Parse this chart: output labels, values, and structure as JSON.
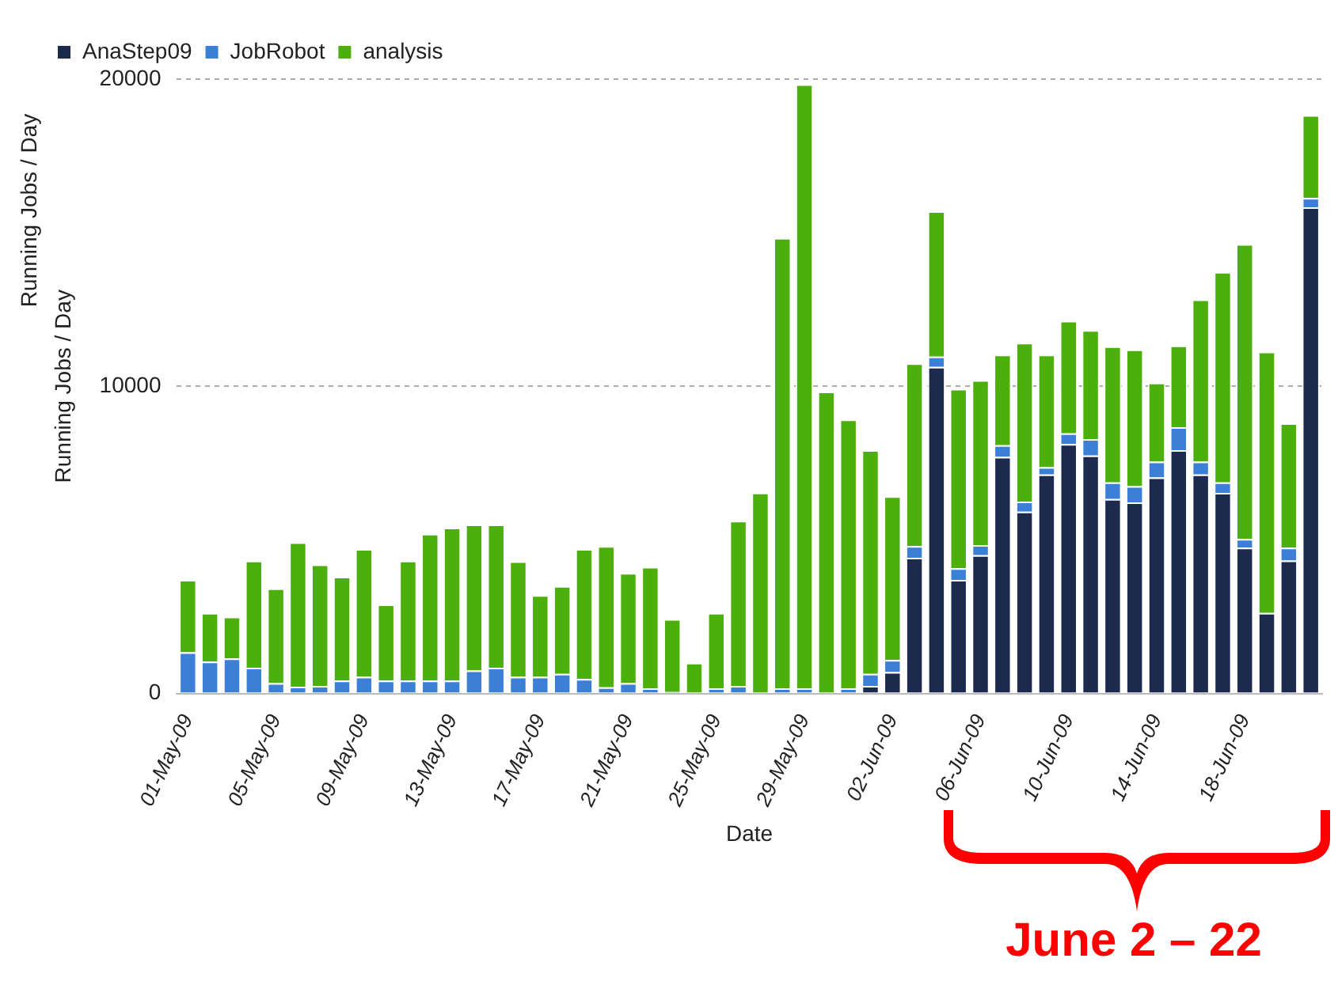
{
  "chart_data": {
    "type": "bar",
    "stacked": true,
    "xlabel": "Date",
    "ylabel": "Running Jobs / Day",
    "annotations": [
      "Running Jobs / Day",
      "June 2 – 22"
    ],
    "categories": [
      "01-May-09",
      null,
      null,
      null,
      "05-May-09",
      null,
      null,
      null,
      "09-May-09",
      null,
      null,
      null,
      "13-May-09",
      null,
      null,
      null,
      "17-May-09",
      null,
      null,
      null,
      "21-May-09",
      null,
      null,
      null,
      "25-May-09",
      null,
      null,
      null,
      "29-May-09",
      null,
      null,
      null,
      "02-Jun-09",
      null,
      null,
      null,
      "06-Jun-09",
      null,
      null,
      null,
      "10-Jun-09",
      null,
      null,
      null,
      "14-Jun-09",
      null,
      null,
      null,
      "18-Jun-09",
      null,
      null,
      null
    ],
    "series": [
      {
        "name": "AnaStep09",
        "color": "#1c2b4d",
        "values": [
          0,
          0,
          0,
          0,
          0,
          0,
          0,
          0,
          0,
          0,
          0,
          0,
          0,
          0,
          0,
          0,
          0,
          0,
          0,
          0,
          0,
          0,
          0,
          0,
          0,
          0,
          0,
          0,
          0,
          0,
          0,
          250,
          700,
          4420,
          10630,
          3700,
          4500,
          7700,
          5920,
          7130,
          8120,
          7750,
          6330,
          6220,
          7030,
          7920,
          7130,
          6530,
          4750,
          2620,
          4330,
          15830
        ]
      },
      {
        "name": "JobRobot",
        "color": "#3b80d6",
        "values": [
          1340,
          1040,
          1140,
          840,
          340,
          220,
          250,
          420,
          540,
          420,
          420,
          420,
          420,
          750,
          840,
          540,
          540,
          640,
          470,
          200,
          340,
          170,
          50,
          0,
          170,
          250,
          0,
          170,
          170,
          0,
          170,
          390,
          390,
          380,
          340,
          380,
          330,
          380,
          330,
          240,
          350,
          530,
          540,
          530,
          520,
          750,
          420,
          340,
          280,
          0,
          420,
          300
        ]
      },
      {
        "name": "analysis",
        "color": "#4caf0c",
        "values": [
          2360,
          1580,
          1360,
          3480,
          3080,
          4700,
          3950,
          3380,
          4160,
          2480,
          3900,
          4780,
          4980,
          4750,
          4660,
          3760,
          2660,
          2860,
          4230,
          4600,
          3580,
          3950,
          2370,
          1000,
          2450,
          5370,
          6540,
          14660,
          19660,
          9830,
          8750,
          7280,
          5330,
          5950,
          4730,
          5840,
          5370,
          2950,
          5170,
          3660,
          3660,
          3550,
          4430,
          4450,
          2570,
          2660,
          5280,
          6850,
          9600,
          8510,
          4050,
          2700
        ]
      }
    ],
    "ylim": [
      0,
      20000
    ],
    "yticks": [
      0,
      10000,
      20000
    ],
    "grid": "y",
    "legend": "top left"
  }
}
